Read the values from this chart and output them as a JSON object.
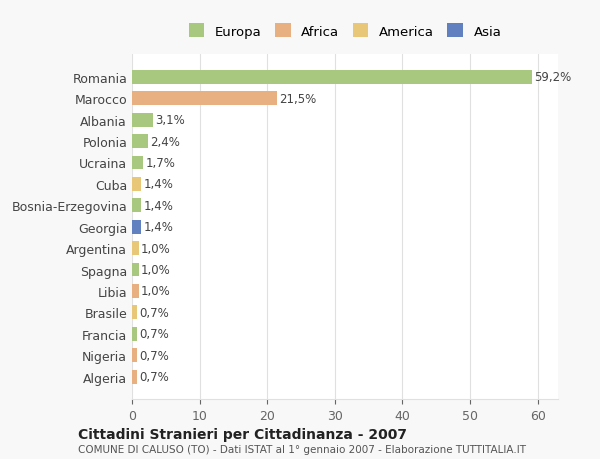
{
  "countries": [
    "Romania",
    "Marocco",
    "Albania",
    "Polonia",
    "Ucraina",
    "Cuba",
    "Bosnia-Erzegovina",
    "Georgia",
    "Argentina",
    "Spagna",
    "Libia",
    "Brasile",
    "Francia",
    "Nigeria",
    "Algeria"
  ],
  "values": [
    59.2,
    21.5,
    3.1,
    2.4,
    1.7,
    1.4,
    1.4,
    1.4,
    1.0,
    1.0,
    1.0,
    0.7,
    0.7,
    0.7,
    0.7
  ],
  "labels": [
    "59,2%",
    "21,5%",
    "3,1%",
    "2,4%",
    "1,7%",
    "1,4%",
    "1,4%",
    "1,4%",
    "1,0%",
    "1,0%",
    "1,0%",
    "0,7%",
    "0,7%",
    "0,7%",
    "0,7%"
  ],
  "colors": [
    "#a8c880",
    "#e8b080",
    "#a8c880",
    "#a8c880",
    "#a8c880",
    "#e8c878",
    "#a8c880",
    "#6080c0",
    "#e8c878",
    "#a8c880",
    "#e8b080",
    "#e8c878",
    "#a8c880",
    "#e8b080",
    "#e8b080"
  ],
  "legend_labels": [
    "Europa",
    "Africa",
    "America",
    "Asia"
  ],
  "legend_colors": [
    "#a8c880",
    "#e8b080",
    "#e8c878",
    "#6080c0"
  ],
  "title": "Cittadini Stranieri per Cittadinanza - 2007",
  "subtitle": "COMUNE DI CALUSO (TO) - Dati ISTAT al 1° gennaio 2007 - Elaborazione TUTTITALIA.IT",
  "xlim": [
    0,
    63
  ],
  "xticks": [
    0,
    10,
    20,
    30,
    40,
    50,
    60
  ],
  "bg_color": "#f8f8f8",
  "plot_bg_color": "#ffffff",
  "grid_color": "#e0e0e0"
}
